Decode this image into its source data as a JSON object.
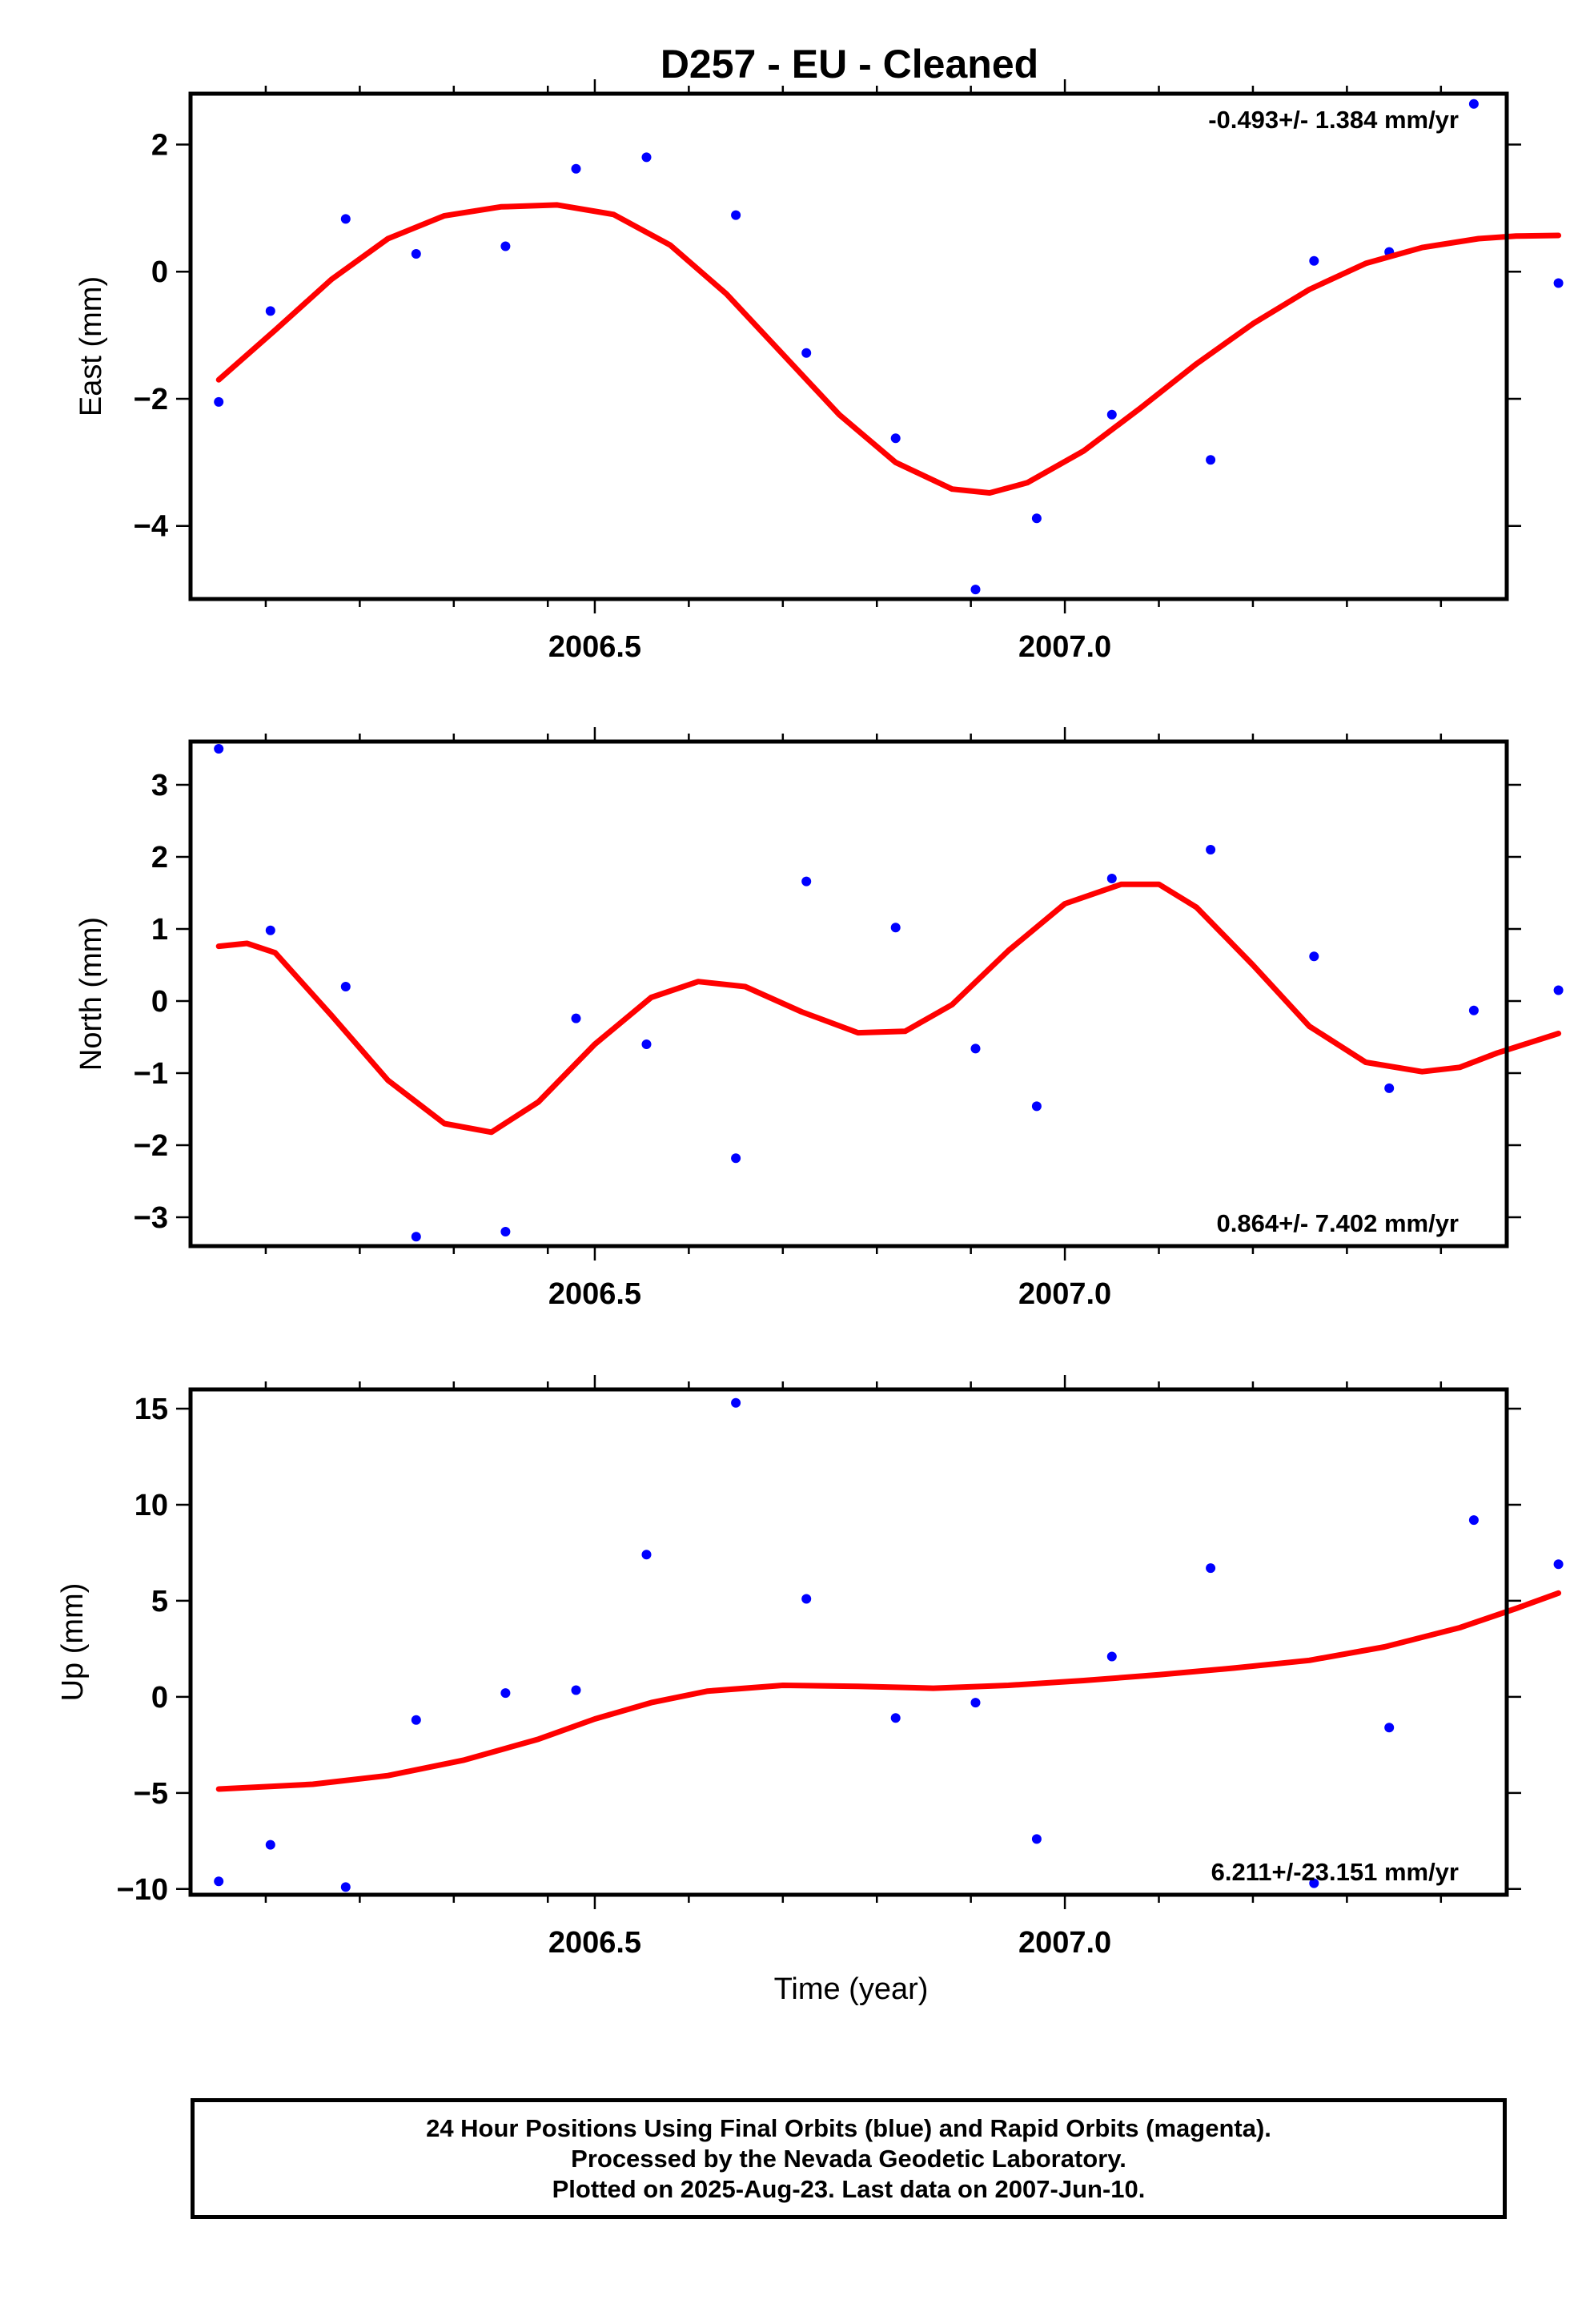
{
  "title": "D257  - EU - Cleaned",
  "chart_data": [
    {
      "type": "scatter",
      "ylabel": "East (mm)",
      "xlabel": "",
      "xlim": [
        2006.07,
        2007.47
      ],
      "ylim": [
        -5.15,
        2.8
      ],
      "xticks": [
        2006.5,
        2007.0
      ],
      "xtick_labels": [
        "2006.5",
        "2007.0"
      ],
      "yticks": [
        -4,
        -2,
        0,
        2
      ],
      "ytick_labels": [
        "−4",
        "−2",
        "0",
        "2"
      ],
      "rate_label": "-0.493+/- 1.384 mm/yr",
      "series": [
        {
          "type": "scatter",
          "color": "#0000ff",
          "x": [
            2006.1,
            2006.155,
            2006.235,
            2006.31,
            2006.405,
            2006.48,
            2006.555,
            2006.65,
            2006.725,
            2006.82,
            2006.905,
            2006.97,
            2007.05,
            2007.155,
            2007.265,
            2007.345,
            2007.435,
            2007.525
          ],
          "y": [
            -2.05,
            -0.62,
            0.83,
            0.28,
            0.4,
            1.62,
            1.8,
            0.89,
            -1.28,
            -2.62,
            -5.0,
            -3.88,
            -2.25,
            -2.96,
            0.17,
            0.31,
            2.64,
            -0.18
          ]
        },
        {
          "type": "line",
          "color": "#ff0000",
          "x": [
            2006.1,
            2006.16,
            2006.22,
            2006.28,
            2006.34,
            2006.4,
            2006.46,
            2006.52,
            2006.58,
            2006.64,
            2006.7,
            2006.76,
            2006.82,
            2006.88,
            2006.92,
            2006.96,
            2007.02,
            2007.08,
            2007.14,
            2007.2,
            2007.26,
            2007.32,
            2007.38,
            2007.44,
            2007.48,
            2007.525
          ],
          "y": [
            -1.7,
            -0.92,
            -0.12,
            0.52,
            0.88,
            1.02,
            1.05,
            0.9,
            0.42,
            -0.35,
            -1.3,
            -2.25,
            -3.0,
            -3.42,
            -3.48,
            -3.32,
            -2.82,
            -2.15,
            -1.45,
            -0.82,
            -0.28,
            0.13,
            0.38,
            0.52,
            0.56,
            0.57
          ]
        }
      ]
    },
    {
      "type": "scatter",
      "ylabel": "North (mm)",
      "xlabel": "",
      "xlim": [
        2006.07,
        2007.47
      ],
      "ylim": [
        -3.4,
        3.6
      ],
      "xticks": [
        2006.5,
        2007.0
      ],
      "xtick_labels": [
        "2006.5",
        "2007.0"
      ],
      "yticks": [
        -3,
        -2,
        -1,
        0,
        1,
        2,
        3
      ],
      "ytick_labels": [
        "−3",
        "−2",
        "−1",
        "0",
        "1",
        "2",
        "3"
      ],
      "rate_label": "0.864+/- 7.402 mm/yr",
      "series": [
        {
          "type": "scatter",
          "color": "#0000ff",
          "x": [
            2006.1,
            2006.155,
            2006.235,
            2006.31,
            2006.405,
            2006.48,
            2006.555,
            2006.65,
            2006.725,
            2006.82,
            2006.905,
            2006.97,
            2007.05,
            2007.155,
            2007.265,
            2007.345,
            2007.435,
            2007.525
          ],
          "y": [
            3.5,
            0.98,
            0.2,
            -3.27,
            -3.2,
            -0.24,
            -0.6,
            -2.18,
            1.66,
            1.02,
            -0.66,
            -1.46,
            1.7,
            2.1,
            0.62,
            -1.21,
            -0.13,
            0.15
          ]
        },
        {
          "type": "line",
          "color": "#ff0000",
          "x": [
            2006.1,
            2006.13,
            2006.16,
            2006.22,
            2006.28,
            2006.34,
            2006.39,
            2006.44,
            2006.5,
            2006.56,
            2006.61,
            2006.66,
            2006.72,
            2006.78,
            2006.83,
            2006.88,
            2006.94,
            2007.0,
            2007.06,
            2007.1,
            2007.14,
            2007.2,
            2007.26,
            2007.32,
            2007.38,
            2007.42,
            2007.46,
            2007.525
          ],
          "y": [
            0.76,
            0.8,
            0.67,
            -0.2,
            -1.1,
            -1.7,
            -1.82,
            -1.4,
            -0.6,
            0.05,
            0.27,
            0.2,
            -0.15,
            -0.44,
            -0.42,
            -0.05,
            0.7,
            1.35,
            1.62,
            1.62,
            1.3,
            0.5,
            -0.35,
            -0.85,
            -0.98,
            -0.92,
            -0.72,
            -0.45
          ]
        }
      ]
    },
    {
      "type": "scatter",
      "ylabel": "Up (mm)",
      "xlabel": "Time (year)",
      "xlim": [
        2006.07,
        2007.47
      ],
      "ylim": [
        -10.3,
        16.0
      ],
      "xticks": [
        2006.5,
        2007.0
      ],
      "xtick_labels": [
        "2006.5",
        "2007.0"
      ],
      "yticks": [
        -10,
        -5,
        0,
        5,
        10,
        15
      ],
      "ytick_labels": [
        "−10",
        "−5",
        "0",
        "5",
        "10",
        "15"
      ],
      "rate_label": "6.211+/-23.151 mm/yr",
      "series": [
        {
          "type": "scatter",
          "color": "#0000ff",
          "x": [
            2006.1,
            2006.155,
            2006.235,
            2006.31,
            2006.405,
            2006.48,
            2006.555,
            2006.65,
            2006.725,
            2006.82,
            2006.905,
            2006.97,
            2007.05,
            2007.155,
            2007.265,
            2007.345,
            2007.435,
            2007.525
          ],
          "y": [
            -9.6,
            -7.7,
            -9.9,
            -1.2,
            0.2,
            0.35,
            7.4,
            15.3,
            5.1,
            -1.1,
            -0.3,
            -7.4,
            2.1,
            6.7,
            -9.7,
            -1.6,
            9.2,
            6.9
          ]
        },
        {
          "type": "line",
          "color": "#ff0000",
          "x": [
            2006.1,
            2006.2,
            2006.28,
            2006.36,
            2006.44,
            2006.5,
            2006.56,
            2006.62,
            2006.7,
            2006.78,
            2006.86,
            2006.94,
            2007.02,
            2007.1,
            2007.18,
            2007.26,
            2007.34,
            2007.42,
            2007.48,
            2007.525
          ],
          "y": [
            -4.8,
            -4.55,
            -4.1,
            -3.3,
            -2.2,
            -1.15,
            -0.3,
            0.3,
            0.6,
            0.55,
            0.45,
            0.6,
            0.85,
            1.15,
            1.5,
            1.9,
            2.6,
            3.6,
            4.6,
            5.4
          ]
        }
      ]
    }
  ],
  "footer": {
    "line1": "24 Hour Positions Using Final Orbits (blue) and Rapid Orbits (magenta).",
    "line2": "Processed by the Nevada Geodetic Laboratory.",
    "line3": "Plotted on 2025-Aug-23. Last data on 2007-Jun-10."
  }
}
